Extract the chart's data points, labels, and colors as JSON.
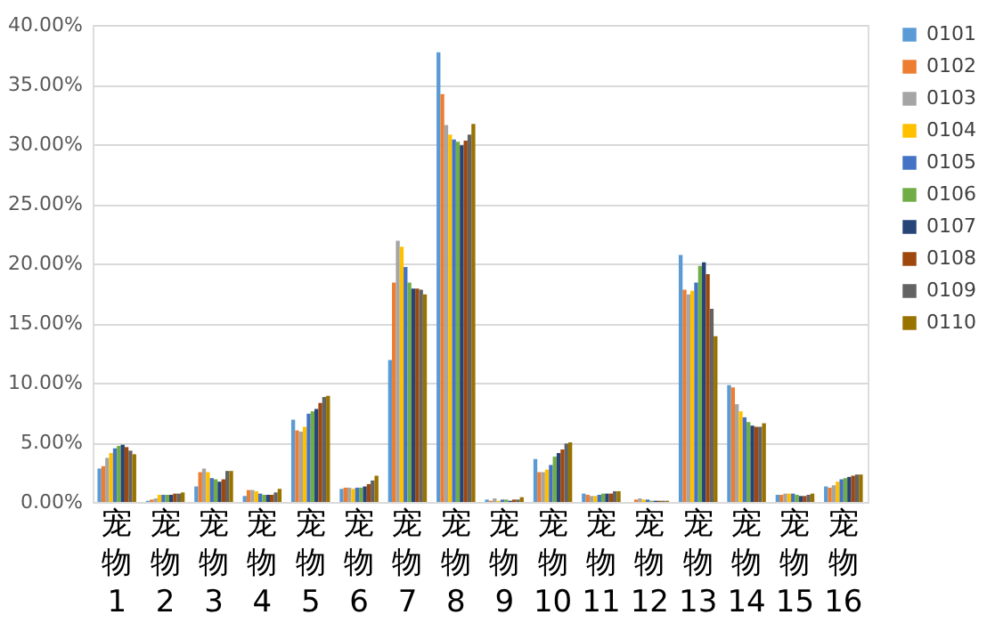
{
  "chart_data": {
    "type": "bar",
    "categories": [
      "宠物1",
      "宠物2",
      "宠物3",
      "宠物4",
      "宠物5",
      "宠物6",
      "宠物7",
      "宠物8",
      "宠物9",
      "宠物10",
      "宠物11",
      "宠物12",
      "宠物13",
      "宠物14",
      "宠物15",
      "宠物16"
    ],
    "series": [
      {
        "name": "0101",
        "color": "#5b9bd5",
        "values": [
          2.8,
          0.1,
          1.3,
          0.5,
          6.9,
          1.1,
          11.9,
          37.7,
          0.2,
          3.6,
          0.7,
          0.0,
          20.7,
          9.8,
          0.6,
          1.3
        ]
      },
      {
        "name": "0102",
        "color": "#ed7d31",
        "values": [
          3.0,
          0.2,
          2.5,
          1.0,
          6.0,
          1.2,
          18.4,
          34.2,
          0.1,
          2.5,
          0.6,
          0.2,
          17.8,
          9.6,
          0.6,
          1.2
        ]
      },
      {
        "name": "0103",
        "color": "#a5a5a5",
        "values": [
          3.7,
          0.3,
          2.8,
          1.0,
          5.9,
          1.2,
          21.9,
          31.6,
          0.3,
          2.5,
          0.5,
          0.3,
          17.4,
          8.2,
          0.7,
          1.4
        ]
      },
      {
        "name": "0104",
        "color": "#ffc000",
        "values": [
          4.1,
          0.6,
          2.5,
          0.9,
          6.3,
          1.1,
          21.4,
          30.8,
          0.1,
          2.7,
          0.5,
          0.2,
          17.7,
          7.6,
          0.7,
          1.7
        ]
      },
      {
        "name": "0105",
        "color": "#4472c4",
        "values": [
          4.5,
          0.6,
          2.0,
          0.7,
          7.4,
          1.2,
          19.7,
          30.4,
          0.2,
          3.1,
          0.6,
          0.2,
          18.4,
          7.1,
          0.7,
          1.9
        ]
      },
      {
        "name": "0106",
        "color": "#70ad47",
        "values": [
          4.7,
          0.6,
          1.9,
          0.6,
          7.6,
          1.2,
          18.4,
          30.2,
          0.2,
          3.8,
          0.7,
          0.1,
          19.8,
          6.7,
          0.6,
          2.0
        ]
      },
      {
        "name": "0107",
        "color": "#264478",
        "values": [
          4.8,
          0.6,
          1.7,
          0.6,
          7.8,
          1.3,
          17.9,
          29.9,
          0.1,
          4.1,
          0.7,
          0.1,
          20.1,
          6.4,
          0.5,
          2.1
        ]
      },
      {
        "name": "0108",
        "color": "#9e480e",
        "values": [
          4.6,
          0.7,
          1.9,
          0.6,
          8.3,
          1.5,
          17.9,
          30.3,
          0.2,
          4.4,
          0.7,
          0.1,
          19.1,
          6.3,
          0.5,
          2.2
        ]
      },
      {
        "name": "0109",
        "color": "#636363",
        "values": [
          4.3,
          0.7,
          2.6,
          0.8,
          8.8,
          1.8,
          17.8,
          30.8,
          0.2,
          4.9,
          0.9,
          0.1,
          16.2,
          6.3,
          0.6,
          2.3
        ]
      },
      {
        "name": "0110",
        "color": "#997300",
        "values": [
          4.0,
          0.8,
          2.6,
          1.1,
          8.9,
          2.2,
          17.4,
          31.7,
          0.4,
          5.0,
          0.9,
          0.1,
          13.9,
          6.6,
          0.7,
          2.3
        ]
      }
    ],
    "ylim": [
      0,
      40
    ],
    "yticks": [
      {
        "value": 0,
        "label": "0.00%"
      },
      {
        "value": 5,
        "label": "5.00%"
      },
      {
        "value": 10,
        "label": "10.00%"
      },
      {
        "value": 15,
        "label": "15.00%"
      },
      {
        "value": 20,
        "label": "20.00%"
      },
      {
        "value": 25,
        "label": "25.00%"
      },
      {
        "value": 30,
        "label": "30.00%"
      },
      {
        "value": 35,
        "label": "35.00%"
      },
      {
        "value": 40,
        "label": "40.00%"
      }
    ],
    "grid": "y",
    "legend": "right"
  }
}
